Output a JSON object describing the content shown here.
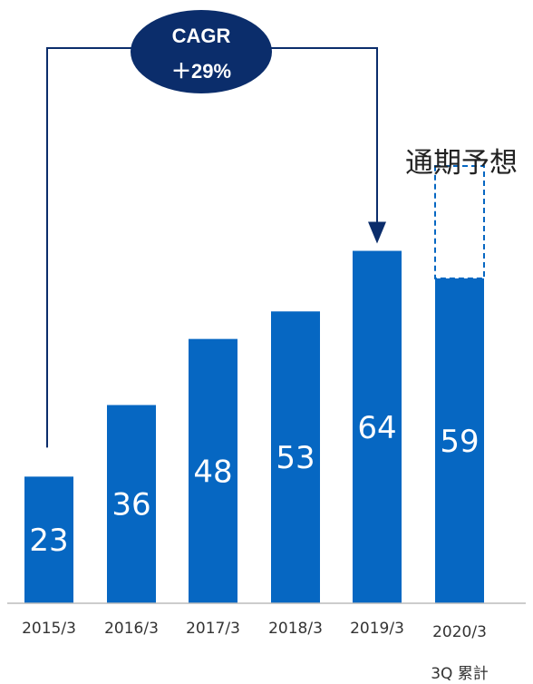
{
  "chart_data": {
    "type": "bar",
    "categories": [
      "2015/3",
      "2016/3",
      "2017/3",
      "2018/3",
      "2019/3",
      "2020/3"
    ],
    "category_sublabels": [
      "",
      "",
      "",
      "",
      "",
      "3Q 累計"
    ],
    "values": [
      23,
      36,
      48,
      53,
      64,
      59
    ],
    "forecast": {
      "label": "通期予想",
      "category": "2020/3"
    },
    "annotation": {
      "line1": "CAGR",
      "line2": "＋29%",
      "from": "2015/3",
      "to": "2019/3"
    },
    "colors": {
      "bar": "#0667c2",
      "annotation": "#0b2d6b",
      "axis": "#bbbbbb"
    }
  }
}
